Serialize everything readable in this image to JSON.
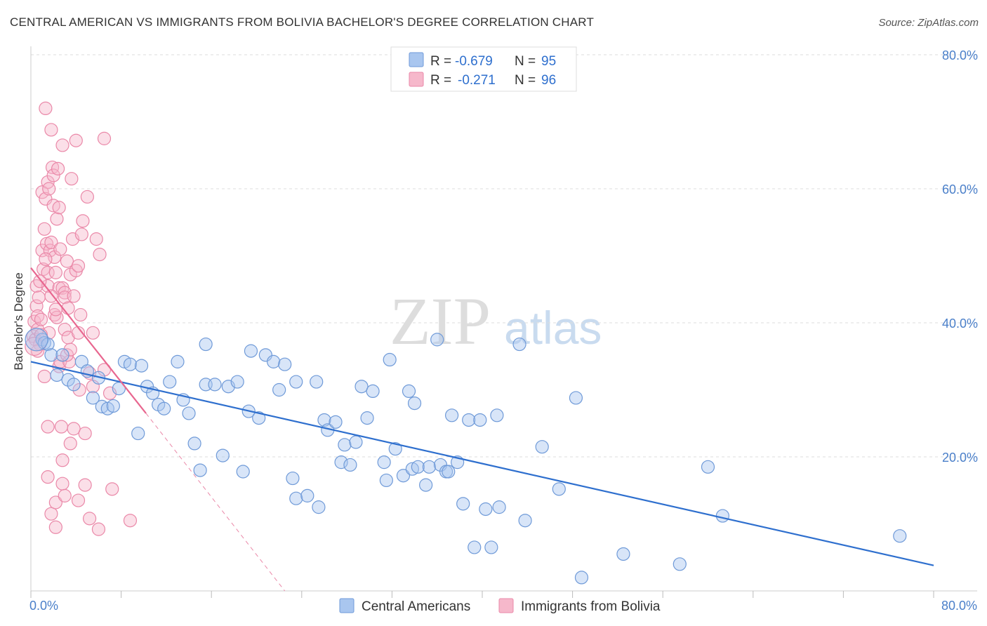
{
  "title": "CENTRAL AMERICAN VS IMMIGRANTS FROM BOLIVIA BACHELOR'S DEGREE CORRELATION CHART",
  "source": "Source: ZipAtlas.com",
  "watermark": {
    "main": "ZIP",
    "sub": "atlas"
  },
  "colors": {
    "blue_fill": "#a9c6ef",
    "blue_stroke": "#6f9ad8",
    "blue_line": "#2e6fce",
    "pink_fill": "#f6b8cb",
    "pink_stroke": "#ea88a8",
    "pink_line": "#e8668f",
    "axis_text": "#4a7fc9",
    "grid": "#dddddd"
  },
  "legend": {
    "row1": {
      "r_label": "R =",
      "r_value": "-0.679",
      "n_label": "N =",
      "n_value": "95"
    },
    "row2": {
      "r_label": "R =",
      "r_value": "-0.271",
      "n_label": "N =",
      "n_value": "96"
    }
  },
  "chart_data": {
    "type": "scatter",
    "title": "CENTRAL AMERICAN VS IMMIGRANTS FROM BOLIVIA BACHELOR'S DEGREE CORRELATION CHART",
    "xlabel": "",
    "ylabel": "Bachelor's Degree",
    "xlim": [
      0,
      80
    ],
    "ylim": [
      0,
      80
    ],
    "x_tick_labels": [
      "0.0%",
      "80.0%"
    ],
    "y_tick_labels": [
      "80.0%",
      "60.0%",
      "40.0%",
      "20.0%"
    ],
    "y_ticks": [
      80,
      60,
      40,
      20
    ],
    "grid": true,
    "legend_position": "top-center",
    "series": [
      {
        "name": "Central Americans",
        "r": -0.679,
        "n": 95,
        "trend": {
          "x0": 0,
          "y0": 34.2,
          "x1": 80,
          "y1": 3.8
        },
        "points": [
          [
            1,
            37.5
          ],
          [
            1.2,
            37
          ],
          [
            1.5,
            36.8
          ],
          [
            1.8,
            35.2
          ],
          [
            2.3,
            32.2
          ],
          [
            2.8,
            35.2
          ],
          [
            3.3,
            31.5
          ],
          [
            3.8,
            30.8
          ],
          [
            4.5,
            34.2
          ],
          [
            5,
            32.8
          ],
          [
            5.5,
            28.8
          ],
          [
            6,
            31.8
          ],
          [
            6.3,
            27.5
          ],
          [
            6.8,
            27.2
          ],
          [
            7.3,
            27.6
          ],
          [
            7.8,
            30.2
          ],
          [
            8.3,
            34.2
          ],
          [
            8.8,
            33.8
          ],
          [
            9.8,
            33.6
          ],
          [
            9.5,
            23.5
          ],
          [
            10.3,
            30.5
          ],
          [
            10.8,
            29.5
          ],
          [
            11.3,
            27.8
          ],
          [
            11.8,
            27.2
          ],
          [
            12.3,
            31.2
          ],
          [
            13,
            34.2
          ],
          [
            13.5,
            28.5
          ],
          [
            14,
            26.5
          ],
          [
            14.5,
            22
          ],
          [
            15,
            18
          ],
          [
            15.5,
            30.8
          ],
          [
            15.5,
            36.8
          ],
          [
            16.3,
            30.8
          ],
          [
            17,
            20.2
          ],
          [
            17.5,
            30.5
          ],
          [
            18.3,
            31.2
          ],
          [
            18.8,
            17.8
          ],
          [
            19.3,
            26.8
          ],
          [
            19.5,
            35.8
          ],
          [
            20.2,
            25.8
          ],
          [
            20.8,
            35.2
          ],
          [
            21.5,
            34.2
          ],
          [
            22,
            30
          ],
          [
            22.5,
            33.8
          ],
          [
            23.2,
            16.8
          ],
          [
            23.5,
            13.8
          ],
          [
            23.5,
            31.2
          ],
          [
            24.5,
            14.2
          ],
          [
            25.3,
            31.2
          ],
          [
            25.5,
            12.5
          ],
          [
            26,
            25.5
          ],
          [
            26.3,
            24
          ],
          [
            27,
            25.2
          ],
          [
            27.5,
            19.2
          ],
          [
            27.8,
            21.8
          ],
          [
            28.3,
            18.8
          ],
          [
            28.8,
            22.2
          ],
          [
            29.3,
            30.5
          ],
          [
            29.8,
            25.8
          ],
          [
            30.3,
            29.8
          ],
          [
            31.3,
            19.2
          ],
          [
            31.5,
            16.5
          ],
          [
            31.8,
            34.5
          ],
          [
            32.3,
            21.2
          ],
          [
            33,
            17.2
          ],
          [
            33.5,
            29.8
          ],
          [
            33.8,
            18.2
          ],
          [
            34,
            28
          ],
          [
            34.3,
            18.5
          ],
          [
            35,
            15.8
          ],
          [
            35.3,
            18.5
          ],
          [
            36,
            37.5
          ],
          [
            36.3,
            18.8
          ],
          [
            36.8,
            17.8
          ],
          [
            37,
            17.8
          ],
          [
            37.3,
            26.2
          ],
          [
            37.8,
            19.2
          ],
          [
            38.3,
            13
          ],
          [
            38.8,
            25.5
          ],
          [
            39.3,
            6.5
          ],
          [
            39.8,
            25.5
          ],
          [
            40.3,
            12.2
          ],
          [
            40.8,
            6.5
          ],
          [
            41.3,
            26.2
          ],
          [
            41.5,
            12.5
          ],
          [
            43.3,
            36.8
          ],
          [
            43.8,
            10.5
          ],
          [
            45.3,
            21.5
          ],
          [
            46.8,
            15.2
          ],
          [
            48.3,
            28.8
          ],
          [
            48.8,
            2
          ],
          [
            52.5,
            5.5
          ],
          [
            57.5,
            4
          ],
          [
            60,
            18.5
          ],
          [
            61.3,
            11.2
          ],
          [
            77,
            8.2
          ]
        ]
      },
      {
        "name": "Immigrants from Bolivia",
        "r": -0.271,
        "n": 96,
        "trend": {
          "x0": 0,
          "y0": 48.2,
          "x1": 10.2,
          "y1": 26.5
        },
        "trend_dashed": {
          "x0": 10.2,
          "y0": 26.5,
          "x1": 22.5,
          "y1": 0
        },
        "points": [
          [
            0.2,
            38
          ],
          [
            0.3,
            40.2
          ],
          [
            0.4,
            37.5
          ],
          [
            0.5,
            42.5
          ],
          [
            0.5,
            45.5
          ],
          [
            0.6,
            41
          ],
          [
            0.6,
            39
          ],
          [
            0.7,
            43.8
          ],
          [
            0.8,
            36.8
          ],
          [
            0.9,
            40.5
          ],
          [
            1,
            50.8
          ],
          [
            1,
            59.5
          ],
          [
            1.1,
            48
          ],
          [
            1.2,
            54
          ],
          [
            1.3,
            72
          ],
          [
            1.3,
            58.5
          ],
          [
            1.4,
            51.8
          ],
          [
            1.5,
            47.5
          ],
          [
            1.5,
            45.5
          ],
          [
            1.5,
            61
          ],
          [
            1.6,
            60
          ],
          [
            1.6,
            38.5
          ],
          [
            1.7,
            50.8
          ],
          [
            1.8,
            52
          ],
          [
            1.8,
            68.8
          ],
          [
            1.9,
            63.2
          ],
          [
            2,
            62
          ],
          [
            2,
            57.5
          ],
          [
            2.1,
            49.8
          ],
          [
            2.1,
            41.2
          ],
          [
            2.2,
            47.5
          ],
          [
            2.3,
            55.5
          ],
          [
            2.3,
            40.8
          ],
          [
            2.4,
            63
          ],
          [
            2.5,
            45.2
          ],
          [
            2.5,
            33.5
          ],
          [
            2.6,
            34.2
          ],
          [
            2.6,
            51
          ],
          [
            2.8,
            45.2
          ],
          [
            2.8,
            66.5
          ],
          [
            3,
            44.5
          ],
          [
            3,
            39
          ],
          [
            3,
            43.8
          ],
          [
            3.2,
            49.2
          ],
          [
            3.3,
            42.2
          ],
          [
            3.3,
            37.8
          ],
          [
            3.4,
            34.2
          ],
          [
            3.5,
            47.2
          ],
          [
            3.6,
            61.5
          ],
          [
            3.7,
            52.5
          ],
          [
            3.8,
            44
          ],
          [
            4,
            67.2
          ],
          [
            4,
            47.8
          ],
          [
            4.2,
            38.5
          ],
          [
            4.3,
            30
          ],
          [
            4.4,
            41.2
          ],
          [
            4.5,
            53.2
          ],
          [
            4.6,
            55.2
          ],
          [
            4.8,
            23.5
          ],
          [
            5.2,
            32.5
          ],
          [
            5.5,
            38.5
          ],
          [
            5.8,
            52.5
          ],
          [
            6.1,
            50.2
          ],
          [
            6.5,
            67.5
          ],
          [
            7,
            29.5
          ],
          [
            1.5,
            24.5
          ],
          [
            1.5,
            17
          ],
          [
            1.8,
            11.5
          ],
          [
            2.2,
            13.2
          ],
          [
            2.8,
            16
          ],
          [
            2.7,
            24.5
          ],
          [
            2.8,
            19.5
          ],
          [
            3,
            14.2
          ],
          [
            3.5,
            22
          ],
          [
            3.8,
            24.2
          ],
          [
            4.2,
            13.5
          ],
          [
            4.8,
            15.8
          ],
          [
            5.2,
            10.8
          ],
          [
            6,
            9.2
          ],
          [
            7.2,
            15.2
          ],
          [
            8.8,
            10.5
          ],
          [
            2.2,
            9.5
          ],
          [
            0.6,
            35.8
          ],
          [
            1.2,
            32
          ],
          [
            2.2,
            42
          ],
          [
            5,
            58.8
          ],
          [
            6.5,
            33
          ],
          [
            3.2,
            35.2
          ],
          [
            1.8,
            44
          ],
          [
            4.2,
            48.5
          ],
          [
            0.8,
            46.2
          ],
          [
            2.5,
            57.2
          ],
          [
            1.3,
            49.5
          ],
          [
            5.5,
            30.5
          ],
          [
            3.5,
            36
          ],
          [
            0.9,
            38.2
          ]
        ]
      }
    ]
  }
}
